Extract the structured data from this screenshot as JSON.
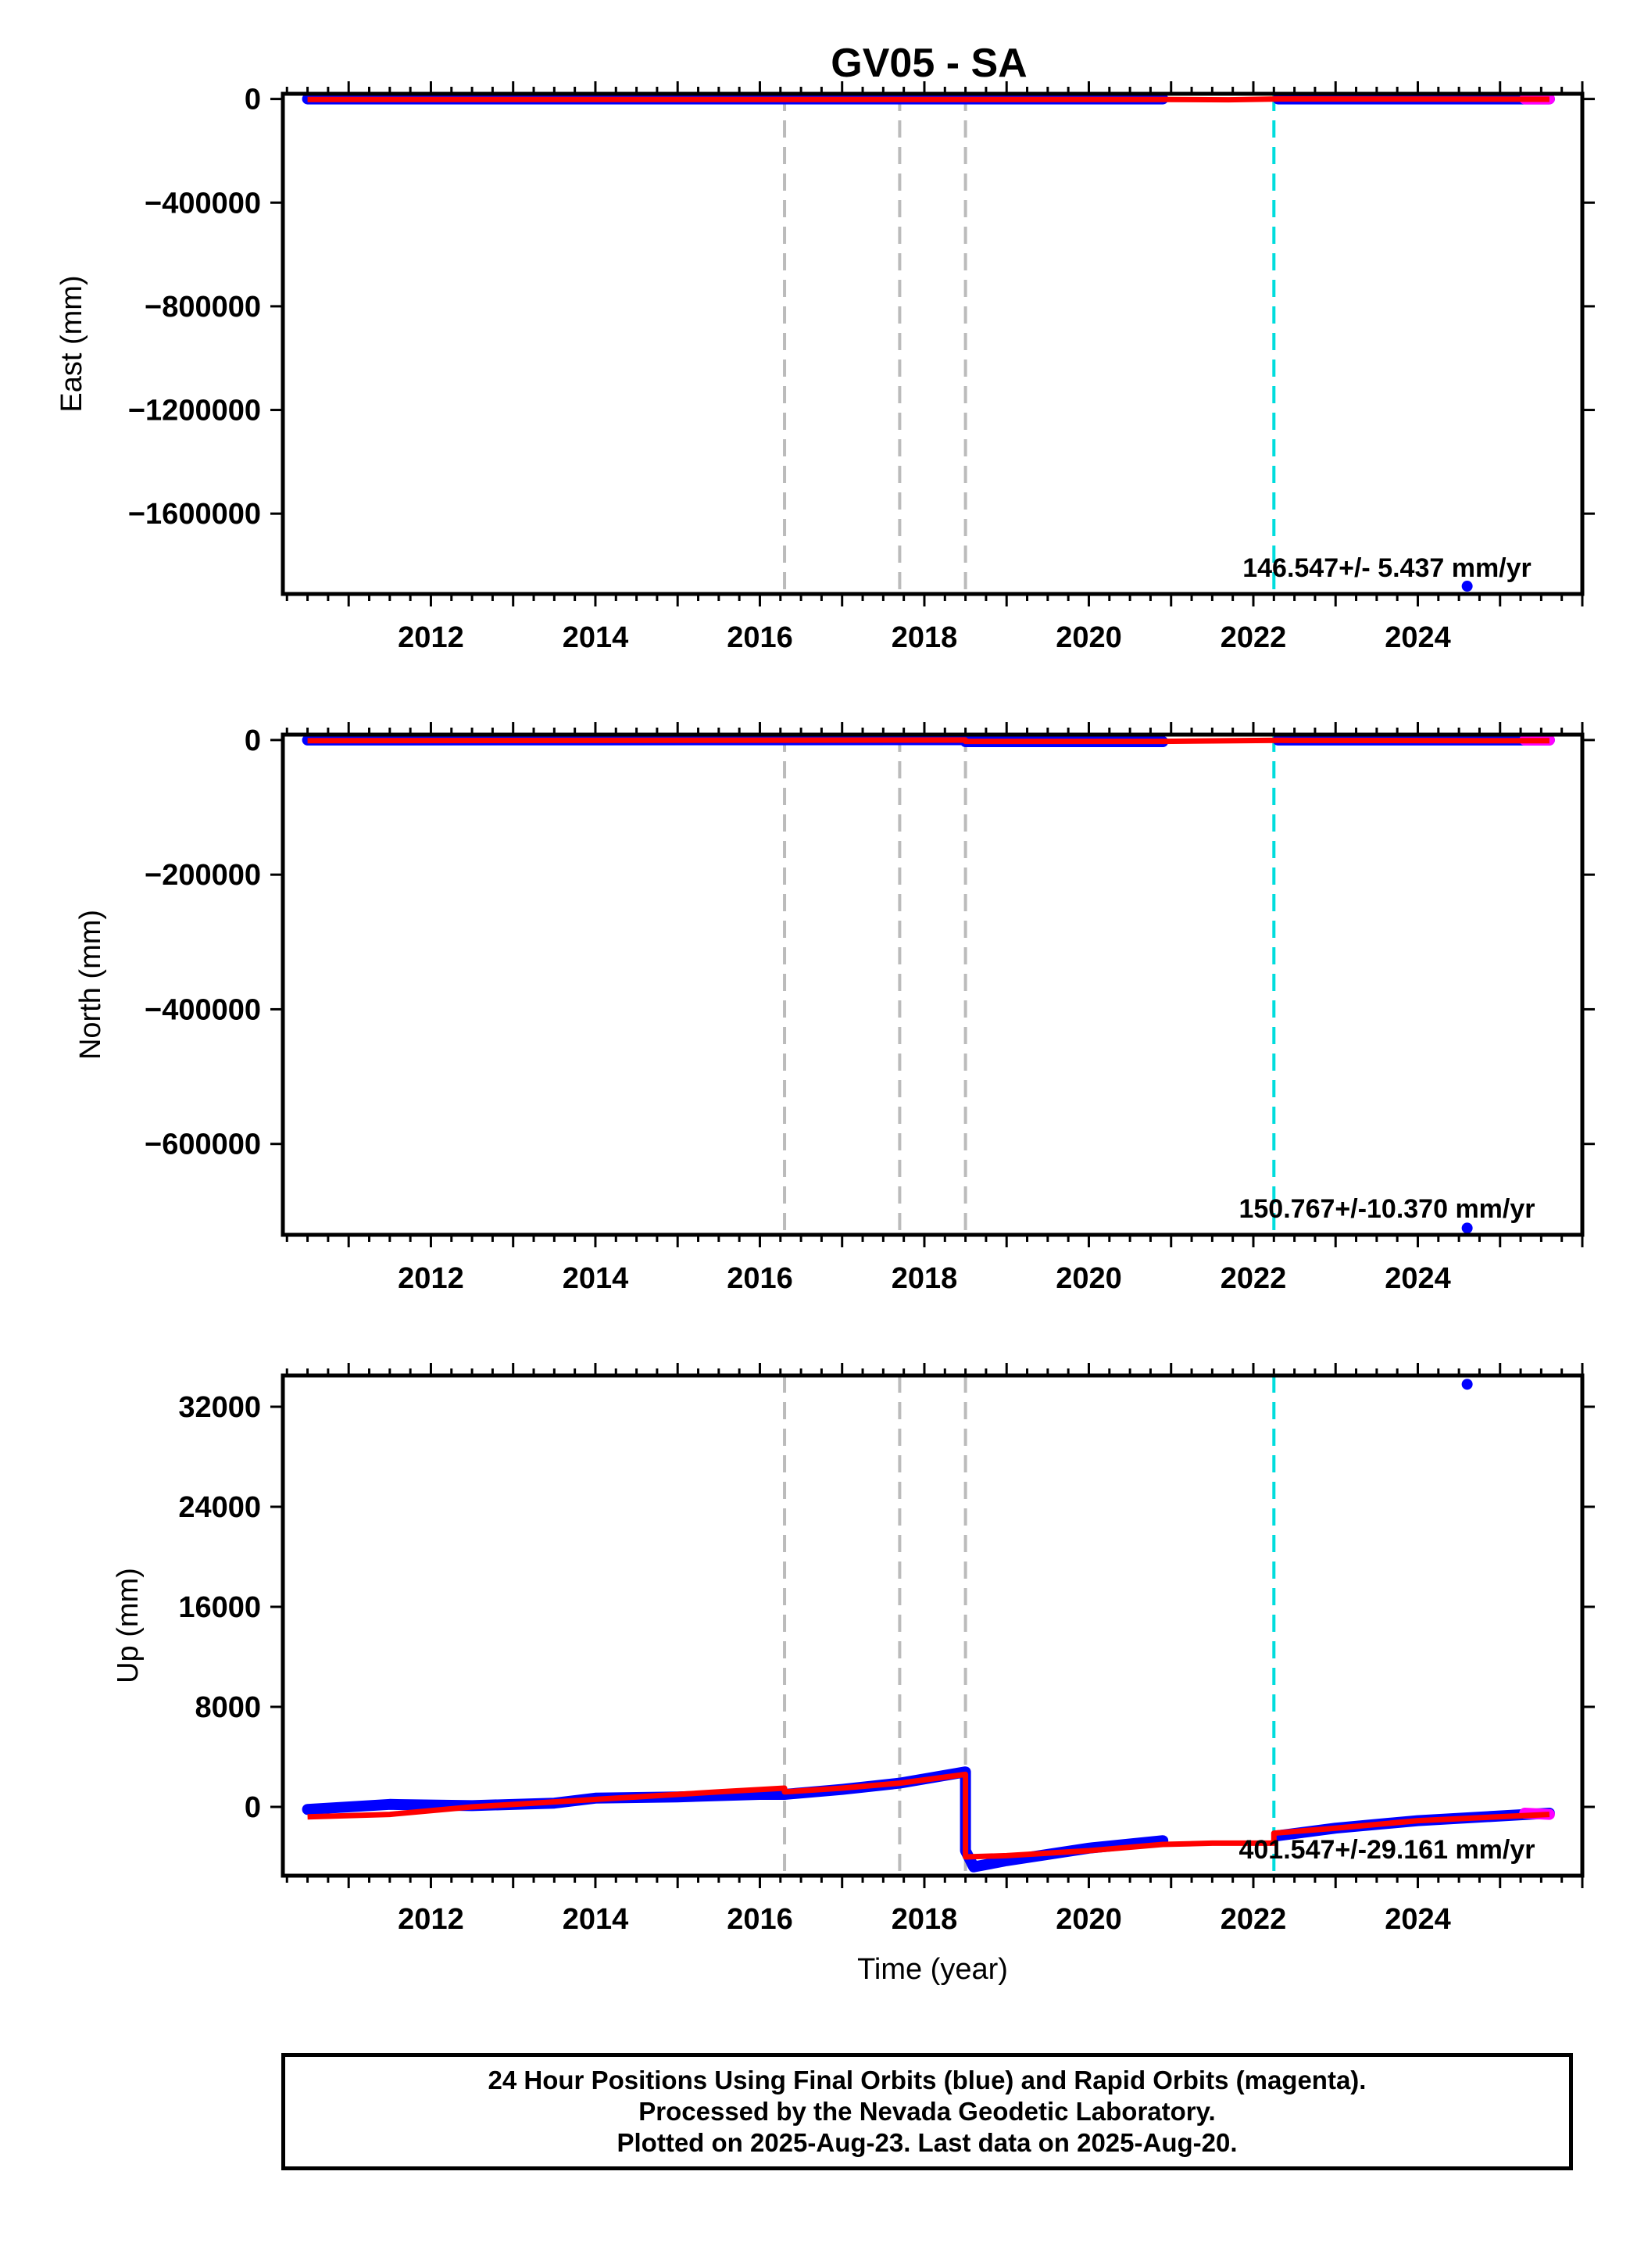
{
  "title": "GV05 - SA",
  "colors": {
    "final_orbit": "#0000ff",
    "rapid_orbit": "#ff00ff",
    "model": "#ff0000",
    "equipment_change": "#bbbbbb",
    "earthquake_event": "#00dddd"
  },
  "caption": {
    "line1": "24 Hour Positions Using Final Orbits (blue) and Rapid Orbits (magenta).",
    "line2": "Processed by the Nevada Geodetic Laboratory.",
    "line3": "Plotted on 2025-Aug-23. Last data on 2025-Aug-20."
  },
  "chart_data": [
    {
      "type": "scatter",
      "component": "East",
      "ylabel": "East (mm)",
      "xlabel": "",
      "xlim": [
        2010.2,
        2026.0
      ],
      "ylim": [
        -1910000,
        20000
      ],
      "xticks": [
        2012,
        2014,
        2016,
        2018,
        2020,
        2022,
        2024
      ],
      "yticks": [
        0,
        -400000,
        -800000,
        -1200000,
        -1600000
      ],
      "ytick_labels": [
        "0",
        "−400000",
        "−800000",
        "−1200000",
        "−1600000"
      ],
      "rate_text": "146.547+/- 5.437 mm/yr",
      "vlines_gray": [
        2016.3,
        2017.7,
        2018.5
      ],
      "vlines_cyan": [
        2022.25
      ],
      "final_series": [
        [
          2010.5,
          0
        ],
        [
          2020.9,
          0
        ],
        [
          2022.3,
          0
        ],
        [
          2025.6,
          0
        ]
      ],
      "rapid_series": [
        [
          2025.3,
          0
        ],
        [
          2025.6,
          0
        ]
      ],
      "model_series": [
        [
          2010.5,
          -2000
        ],
        [
          2020.9,
          -2000
        ],
        [
          2021.7,
          -3000
        ],
        [
          2022.3,
          0
        ],
        [
          2025.6,
          -1000
        ]
      ],
      "outliers": [
        [
          2024.6,
          -1880000
        ]
      ]
    },
    {
      "type": "scatter",
      "component": "North",
      "ylabel": "North (mm)",
      "xlabel": "",
      "xlim": [
        2010.2,
        2026.0
      ],
      "ylim": [
        -735000,
        8000
      ],
      "xticks": [
        2012,
        2014,
        2016,
        2018,
        2020,
        2022,
        2024
      ],
      "yticks": [
        0,
        -200000,
        -400000,
        -600000
      ],
      "ytick_labels": [
        "0",
        "−200000",
        "−400000",
        "−600000"
      ],
      "rate_text": "150.767+/-10.370 mm/yr",
      "vlines_gray": [
        2016.3,
        2017.7,
        2018.5
      ],
      "vlines_cyan": [
        2022.25
      ],
      "final_series": [
        [
          2010.5,
          0
        ],
        [
          2018.5,
          500
        ],
        [
          2018.5,
          -2500
        ],
        [
          2020.9,
          -2500
        ],
        [
          2022.3,
          0
        ],
        [
          2025.6,
          0
        ]
      ],
      "rapid_series": [
        [
          2025.3,
          0
        ],
        [
          2025.6,
          0
        ]
      ],
      "model_series": [
        [
          2010.5,
          -1000
        ],
        [
          2018.5,
          0
        ],
        [
          2018.5,
          -2000
        ],
        [
          2020.9,
          -2000
        ],
        [
          2022.3,
          -500
        ],
        [
          2025.6,
          -1000
        ]
      ],
      "outliers": [
        [
          2024.6,
          -725000
        ]
      ]
    },
    {
      "type": "scatter",
      "component": "Up",
      "ylabel": "Up (mm)",
      "xlabel": "Time (year)",
      "xlim": [
        2010.2,
        2026.0
      ],
      "ylim": [
        -5500,
        34500
      ],
      "xticks": [
        2012,
        2014,
        2016,
        2018,
        2020,
        2022,
        2024
      ],
      "yticks": [
        0,
        8000,
        16000,
        24000,
        32000
      ],
      "ytick_labels": [
        "0",
        "8000",
        "16000",
        "24000",
        "32000"
      ],
      "rate_text": "401.547+/-29.161 mm/yr",
      "vlines_gray": [
        2016.3,
        2017.7,
        2018.5
      ],
      "vlines_cyan": [
        2022.25
      ],
      "final_series": [
        [
          2010.5,
          -200
        ],
        [
          2011.5,
          200
        ],
        [
          2012.5,
          100
        ],
        [
          2013.5,
          300
        ],
        [
          2014.0,
          700
        ],
        [
          2015.0,
          800
        ],
        [
          2016.0,
          1000
        ],
        [
          2016.3,
          1000
        ],
        [
          2017.0,
          1400
        ],
        [
          2017.7,
          1900
        ],
        [
          2018.5,
          2800
        ],
        [
          2018.5,
          -3500
        ],
        [
          2018.6,
          -4800
        ],
        [
          2019.0,
          -4300
        ],
        [
          2019.5,
          -3800
        ],
        [
          2020.0,
          -3300
        ],
        [
          2020.9,
          -2700
        ],
        [
          2022.3,
          -2300
        ],
        [
          2023.0,
          -1700
        ],
        [
          2024.0,
          -1100
        ],
        [
          2025.6,
          -500
        ]
      ],
      "rapid_series": [
        [
          2025.3,
          -500
        ],
        [
          2025.6,
          -600
        ]
      ],
      "model_series": [
        [
          2010.5,
          -800
        ],
        [
          2011.5,
          -600
        ],
        [
          2012.5,
          0
        ],
        [
          2013.5,
          400
        ],
        [
          2014.5,
          800
        ],
        [
          2015.5,
          1200
        ],
        [
          2016.3,
          1500
        ],
        [
          2016.3,
          1200
        ],
        [
          2017.0,
          1500
        ],
        [
          2017.7,
          1900
        ],
        [
          2018.5,
          2600
        ],
        [
          2018.5,
          -4000
        ],
        [
          2019.0,
          -3900
        ],
        [
          2020.0,
          -3500
        ],
        [
          2020.9,
          -3000
        ],
        [
          2021.5,
          -2900
        ],
        [
          2022.25,
          -2900
        ],
        [
          2022.25,
          -2100
        ],
        [
          2023.0,
          -1700
        ],
        [
          2024.0,
          -1100
        ],
        [
          2025.6,
          -600
        ]
      ],
      "outliers": [
        [
          2024.6,
          33800
        ]
      ]
    }
  ]
}
